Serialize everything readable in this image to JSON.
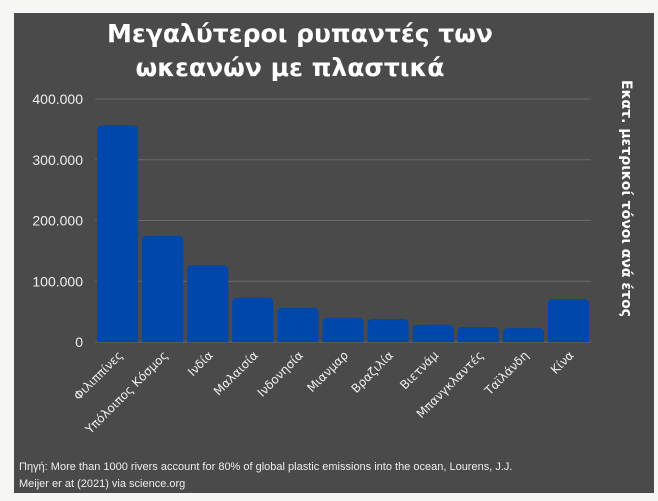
{
  "chart_data": {
    "type": "bar",
    "title_lines": [
      "Μεγαλύτεροι ρυπαντές των",
      "ωκεανών με πλαστικά"
    ],
    "xlabel": "",
    "ylabel": "Εκατ. μετρικοί τόνοι ανά έτος",
    "categories": [
      "Φιλιππίνες",
      "Υπόλοιπος Κόσμος",
      "Ινδία",
      "Μαλαισία",
      "Ινδονησία",
      "Μιανμαρ",
      "Βραζιλία",
      "Βιετνάμ",
      "Μπανγκλαντές",
      "Ταϊλάνδη",
      "Κίνα"
    ],
    "values": [
      356371,
      175000,
      126513,
      73098,
      56333,
      40000,
      37799,
      28221,
      24640,
      22806,
      70707
    ],
    "ylim": [
      0,
      400000
    ],
    "yticks": [
      0,
      100000,
      200000,
      300000,
      400000
    ],
    "ytick_labels": [
      "0",
      "100.000",
      "200.000",
      "300.000",
      "400.000"
    ],
    "grid": true,
    "bar_color": "#0047ab",
    "source_lines": [
      "Πηγή: More than 1000 rivers account for 80% of global plastic emissions into the ocean, Lourens, J.J.",
      "Meijer er at (2021) via science.org"
    ]
  }
}
